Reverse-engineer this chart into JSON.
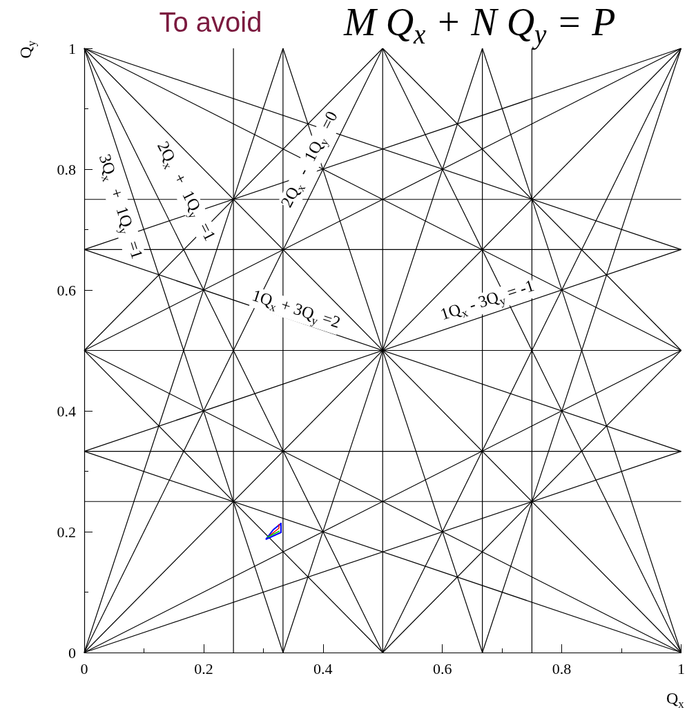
{
  "chart_data": {
    "type": "line",
    "xlabel": "Q$_{x}$",
    "ylabel": "Q$_{y}$",
    "xlim": [
      0,
      1
    ],
    "ylim": [
      0,
      1
    ],
    "xticks": [
      0,
      0.2,
      0.4,
      0.6,
      0.8,
      1
    ],
    "yticks": [
      0,
      0.2,
      0.4,
      0.6,
      0.8,
      1
    ],
    "grid": false,
    "marker": "none",
    "line_style": "solid",
    "annotations": [
      {
        "text": "To avoid"
      },
      {
        "text": "M Q$_{x}$ + N Q$_{y}$ = P"
      },
      "3Q$_{x}$ + 1Q$_{y}$ =1",
      "2Q$_{x}$ + 1Q$_{y}$ =1",
      "2Q$_{x}$ - 1Q$_{y}$ =0",
      "1Q$_{x}$ + 3Q$_{y}$ =2",
      "1Q$_{x}$ - 3Q$_{y}$ = -1"
    ],
    "series": [
      {
        "color": "#000000",
        "x": [
          0.25,
          0.25
        ],
        "values": [
          0,
          1
        ]
      },
      {
        "color": "#000000",
        "x": [
          0.333,
          0.333
        ],
        "values": [
          0,
          1
        ]
      },
      {
        "color": "#000000",
        "x": [
          0.5,
          0.5
        ],
        "values": [
          0,
          1
        ]
      },
      {
        "color": "#000000",
        "x": [
          0.667,
          0.667
        ],
        "values": [
          0,
          1
        ]
      },
      {
        "color": "#000000",
        "x": [
          0.75,
          0.75
        ],
        "values": [
          0,
          1
        ]
      },
      {
        "color": "#000000",
        "x": [
          0,
          1
        ],
        "values": [
          0.25,
          0.25
        ]
      },
      {
        "color": "#000000",
        "x": [
          0,
          1
        ],
        "values": [
          0.333,
          0.333
        ]
      },
      {
        "color": "#000000",
        "x": [
          0,
          1
        ],
        "values": [
          0.5,
          0.5
        ]
      },
      {
        "color": "#000000",
        "x": [
          0,
          1
        ],
        "values": [
          0.667,
          0.667
        ]
      },
      {
        "color": "#000000",
        "x": [
          0,
          1
        ],
        "values": [
          0.75,
          0.75
        ]
      },
      {
        "color": "#000000",
        "x": [
          0,
          1
        ],
        "values": [
          1,
          0
        ]
      },
      {
        "color": "#000000",
        "x": [
          0,
          0.5
        ],
        "values": [
          0.5,
          0
        ]
      },
      {
        "color": "#000000",
        "x": [
          0.5,
          1
        ],
        "values": [
          1,
          0.5
        ]
      },
      {
        "color": "#000000",
        "x": [
          0,
          1
        ],
        "values": [
          0,
          1
        ]
      },
      {
        "color": "#000000",
        "x": [
          0.5,
          1
        ],
        "values": [
          0,
          0.5
        ]
      },
      {
        "color": "#000000",
        "x": [
          0,
          0.5
        ],
        "values": [
          0.5,
          1
        ]
      },
      {
        "color": "#000000",
        "x": [
          0,
          0.5
        ],
        "values": [
          1,
          0
        ]
      },
      {
        "color": "#000000",
        "x": [
          0.5,
          1
        ],
        "values": [
          1,
          0
        ]
      },
      {
        "color": "#000000",
        "x": [
          0,
          1
        ],
        "values": [
          0.5,
          0
        ]
      },
      {
        "color": "#000000",
        "x": [
          0,
          1
        ],
        "values": [
          1,
          0.5
        ]
      },
      {
        "color": "#000000",
        "x": [
          0,
          0.5
        ],
        "values": [
          0,
          1
        ]
      },
      {
        "color": "#000000",
        "x": [
          0.5,
          1
        ],
        "values": [
          0,
          1
        ]
      },
      {
        "color": "#000000",
        "x": [
          0,
          1
        ],
        "values": [
          0,
          0.5
        ]
      },
      {
        "color": "#000000",
        "x": [
          0,
          1
        ],
        "values": [
          0.5,
          1
        ]
      },
      {
        "color": "#000000",
        "x": [
          0,
          0.333
        ],
        "values": [
          1,
          0
        ]
      },
      {
        "color": "#000000",
        "x": [
          0.333,
          0.667
        ],
        "values": [
          1,
          0
        ]
      },
      {
        "color": "#000000",
        "x": [
          0.667,
          1
        ],
        "values": [
          1,
          0
        ]
      },
      {
        "color": "#000000",
        "x": [
          0,
          1
        ],
        "values": [
          0.333,
          0
        ]
      },
      {
        "color": "#000000",
        "x": [
          0,
          1
        ],
        "values": [
          0.667,
          0.333
        ]
      },
      {
        "color": "#000000",
        "x": [
          0,
          1
        ],
        "values": [
          1,
          0.667
        ]
      },
      {
        "color": "#000000",
        "x": [
          0,
          0.333
        ],
        "values": [
          0,
          1
        ]
      },
      {
        "color": "#000000",
        "x": [
          0.333,
          0.667
        ],
        "values": [
          0,
          1
        ]
      },
      {
        "color": "#000000",
        "x": [
          0.667,
          1
        ],
        "values": [
          0,
          1
        ]
      },
      {
        "color": "#000000",
        "x": [
          0,
          1
        ],
        "values": [
          0,
          0.333
        ]
      },
      {
        "color": "#000000",
        "x": [
          0,
          1
        ],
        "values": [
          0.333,
          0.667
        ]
      },
      {
        "color": "#000000",
        "x": [
          0,
          1
        ],
        "values": [
          0.667,
          1
        ]
      }
    ]
  }
}
